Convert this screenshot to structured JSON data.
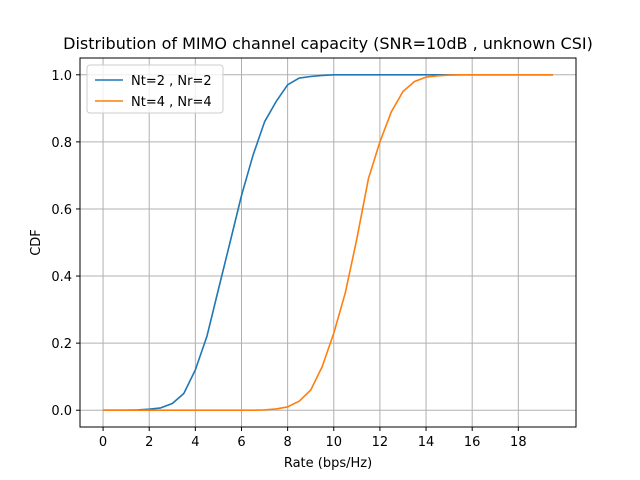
{
  "chart_data": {
    "type": "line",
    "title": "Distribution of MIMO channel capacity (SNR=10dB , unknown CSI)",
    "xlabel": "Rate (bps/Hz)",
    "ylabel": "CDF",
    "xlim": [
      -1,
      20.5
    ],
    "ylim": [
      -0.05,
      1.05
    ],
    "xticks": [
      0,
      2,
      4,
      6,
      8,
      10,
      12,
      14,
      16,
      18
    ],
    "yticks": [
      0.0,
      0.2,
      0.4,
      0.6,
      0.8,
      1.0
    ],
    "xtick_labels": [
      "0",
      "2",
      "4",
      "6",
      "8",
      "10",
      "12",
      "14",
      "16",
      "18"
    ],
    "ytick_labels": [
      "0.0",
      "0.2",
      "0.4",
      "0.6",
      "0.8",
      "1.0"
    ],
    "grid": true,
    "legend_position": "upper-left",
    "series": [
      {
        "name": "Nt=2 , Nr=2",
        "color": "#1f77b4",
        "x": [
          0,
          0.5,
          1,
          1.5,
          2,
          2.5,
          3,
          3.5,
          4,
          4.5,
          5,
          5.5,
          6,
          6.5,
          7,
          7.5,
          8,
          8.5,
          9,
          9.5,
          10,
          10.5,
          11,
          11.5,
          12,
          12.5,
          13,
          13.5,
          14,
          14.5,
          15,
          15.5,
          16,
          16.5,
          17,
          17.5,
          18,
          18.5,
          19,
          19.5
        ],
        "y": [
          0,
          0,
          0,
          0.001,
          0.003,
          0.007,
          0.02,
          0.05,
          0.12,
          0.22,
          0.36,
          0.5,
          0.64,
          0.76,
          0.86,
          0.92,
          0.97,
          0.99,
          0.995,
          0.998,
          1,
          1,
          1,
          1,
          1,
          1,
          1,
          1,
          1,
          1,
          1,
          1,
          1,
          1,
          1,
          1,
          1,
          1,
          1,
          1
        ]
      },
      {
        "name": "Nt=4 , Nr=4",
        "color": "#ff7f0e",
        "x": [
          0,
          0.5,
          1,
          1.5,
          2,
          2.5,
          3,
          3.5,
          4,
          4.5,
          5,
          5.5,
          6,
          6.5,
          7,
          7.5,
          8,
          8.5,
          9,
          9.5,
          10,
          10.5,
          11,
          11.5,
          12,
          12.5,
          13,
          13.5,
          14,
          14.5,
          15,
          15.5,
          16,
          16.5,
          17,
          17.5,
          18,
          18.5,
          19,
          19.5
        ],
        "y": [
          0,
          0,
          0,
          0,
          0,
          0,
          0,
          0,
          0,
          0,
          0,
          0,
          0,
          0,
          0.001,
          0.004,
          0.01,
          0.027,
          0.06,
          0.13,
          0.23,
          0.35,
          0.51,
          0.69,
          0.8,
          0.89,
          0.95,
          0.98,
          0.993,
          0.997,
          0.999,
          1,
          1,
          1,
          1,
          1,
          1,
          1,
          1,
          1
        ]
      }
    ]
  }
}
